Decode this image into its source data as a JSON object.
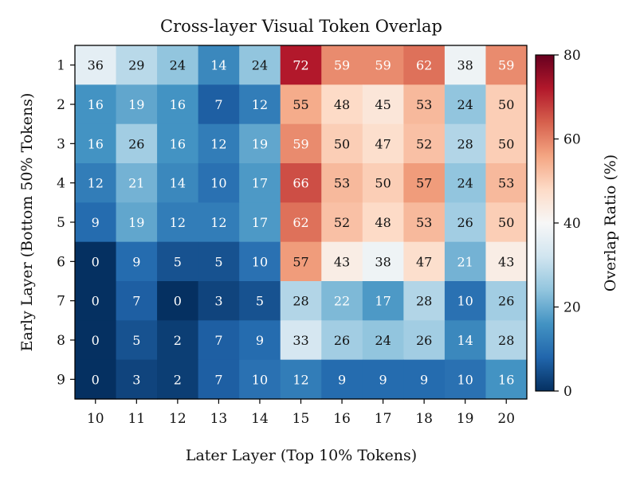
{
  "chart_data": {
    "type": "heatmap",
    "title": "Cross-layer Visual Token Overlap",
    "xlabel": "Later Layer (Top 10% Tokens)",
    "ylabel": "Early Layer (Bottom 50% Tokens)",
    "colorbar_label": "Overlap Ratio (%)",
    "x_categories": [
      "10",
      "11",
      "12",
      "13",
      "14",
      "15",
      "16",
      "17",
      "18",
      "19",
      "20"
    ],
    "y_categories": [
      "1",
      "2",
      "3",
      "4",
      "5",
      "6",
      "7",
      "8",
      "9"
    ],
    "values": [
      [
        36,
        29,
        24,
        14,
        24,
        72,
        59,
        59,
        62,
        38,
        59
      ],
      [
        16,
        19,
        16,
        7,
        12,
        55,
        48,
        45,
        53,
        24,
        50
      ],
      [
        16,
        26,
        16,
        12,
        19,
        59,
        50,
        47,
        52,
        28,
        50
      ],
      [
        12,
        21,
        14,
        10,
        17,
        66,
        53,
        50,
        57,
        24,
        53
      ],
      [
        9,
        19,
        12,
        12,
        17,
        62,
        52,
        48,
        53,
        26,
        50
      ],
      [
        0,
        9,
        5,
        5,
        10,
        57,
        43,
        38,
        47,
        21,
        43
      ],
      [
        0,
        7,
        0,
        3,
        5,
        28,
        22,
        17,
        28,
        10,
        26
      ],
      [
        0,
        5,
        2,
        7,
        9,
        33,
        26,
        24,
        26,
        14,
        28
      ],
      [
        0,
        3,
        2,
        7,
        10,
        12,
        9,
        9,
        9,
        10,
        16
      ]
    ],
    "colorscale": "RdBu_r",
    "vmin": 0,
    "vmax": 80,
    "colorbar_ticks": [
      "0",
      "20",
      "40",
      "60",
      "80"
    ]
  }
}
